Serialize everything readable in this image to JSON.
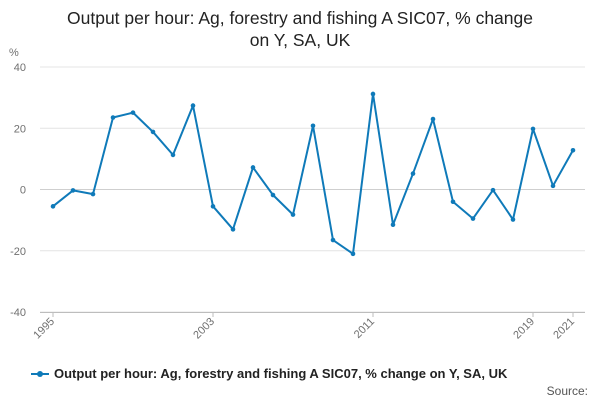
{
  "chart_data": {
    "type": "line",
    "title": "Output per hour: Ag, forestry and fishing A SIC07, % change on Y, SA, UK",
    "title_lines": [
      "Output per hour: Ag, forestry and fishing A SIC07, % change",
      "on Y, SA, UK"
    ],
    "ylabel": "%",
    "xlabel": "",
    "ylim": [
      -40,
      40
    ],
    "yticks": [
      -40,
      -20,
      0,
      20,
      40
    ],
    "xticks": [
      "1995",
      "2003",
      "2011",
      "2019",
      "2021"
    ],
    "grid": true,
    "legend_position": "bottom",
    "x": [
      "1995",
      "1996",
      "1997",
      "1998",
      "1999",
      "2000",
      "2001",
      "2002",
      "2003",
      "2004",
      "2005",
      "2006",
      "2007",
      "2008",
      "2009",
      "2010",
      "2011",
      "2012",
      "2013",
      "2014",
      "2015",
      "2016",
      "2017",
      "2018",
      "2019",
      "2020",
      "2021"
    ],
    "series": [
      {
        "name": "Output per hour: Ag, forestry and fishing A SIC07, % change on Y, SA, UK",
        "color": "#0f7ab9",
        "values": [
          -5.5,
          -0.3,
          -1.5,
          23.5,
          25.1,
          18.8,
          11.3,
          27.4,
          -5.5,
          -13.0,
          7.2,
          -1.8,
          -8.2,
          20.8,
          -16.5,
          -21.0,
          31.2,
          -11.5,
          5.2,
          23.0,
          -4.0,
          -9.5,
          -0.2,
          -9.8,
          19.8,
          1.2,
          12.8
        ]
      }
    ],
    "source_label": "Source:"
  }
}
